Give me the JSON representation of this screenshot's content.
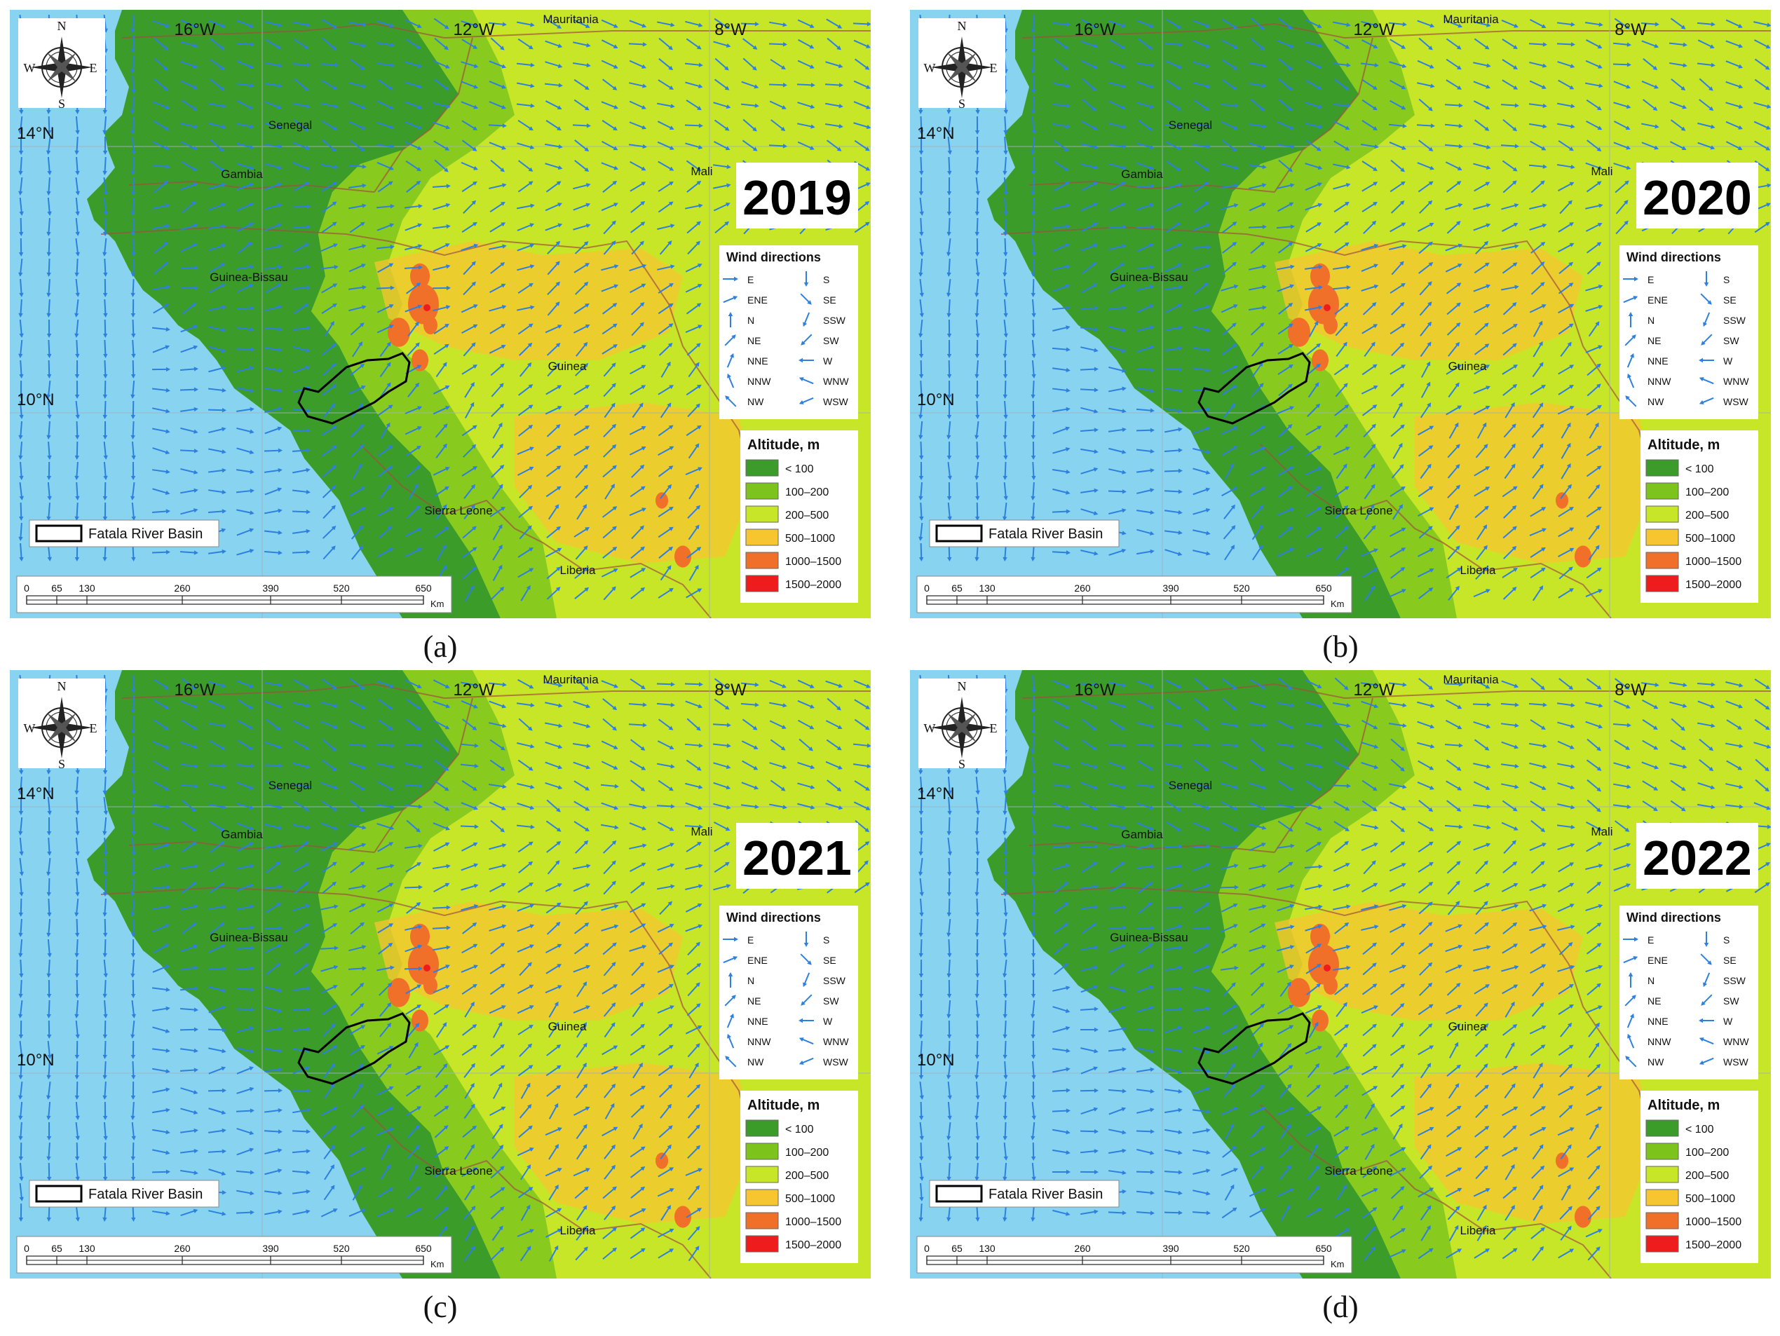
{
  "colors": {
    "ocean": "#88d4f0",
    "alt_lt100": "#3c9c2a",
    "alt_100_200": "#7cc41c",
    "alt_200_500": "#c8e628",
    "alt_500_1000": "#f7c530",
    "alt_1000_1500": "#f0702a",
    "alt_1500_2000": "#ee1c1c",
    "arrow": "#2d7fe0",
    "border": "#a05040"
  },
  "map": {
    "lon_labels": [
      "16°W",
      "12°W",
      "8°W"
    ],
    "lat_labels": [
      "14°N",
      "10°N"
    ],
    "country_labels": [
      "Mauritania",
      "Senegal",
      "Gambia",
      "Mali",
      "Guinea-Bissau",
      "Guinea",
      "Sierra Leone",
      "Liberia"
    ],
    "compass": [
      "N",
      "E",
      "S",
      "W"
    ],
    "basin_label": "Fatala River Basin",
    "scale_ticks": [
      "0",
      "65",
      "130",
      "260",
      "390",
      "520",
      "650"
    ],
    "scale_unit": "Km"
  },
  "legend_wind": {
    "title": "Wind directions",
    "items": [
      {
        "label": "E",
        "icon": "arrow-e-icon"
      },
      {
        "label": "S",
        "icon": "arrow-s-icon"
      },
      {
        "label": "ENE",
        "icon": "arrow-ene-icon"
      },
      {
        "label": "SE",
        "icon": "arrow-se-icon"
      },
      {
        "label": "N",
        "icon": "arrow-n-icon"
      },
      {
        "label": "SSW",
        "icon": "arrow-ssw-icon"
      },
      {
        "label": "NE",
        "icon": "arrow-ne-icon"
      },
      {
        "label": "SW",
        "icon": "arrow-sw-icon"
      },
      {
        "label": "NNE",
        "icon": "arrow-nne-icon"
      },
      {
        "label": "W",
        "icon": "arrow-w-icon"
      },
      {
        "label": "NNW",
        "icon": "arrow-nnw-icon"
      },
      {
        "label": "WNW",
        "icon": "arrow-wnw-icon"
      },
      {
        "label": "NW",
        "icon": "arrow-nw-icon"
      },
      {
        "label": "WSW",
        "icon": "arrow-wsw-icon"
      }
    ]
  },
  "legend_altitude": {
    "title": "Altitude, m",
    "items": [
      "< 100",
      "100–200",
      "200–500",
      "500–1000",
      "1000–1500",
      "1500–2000"
    ]
  },
  "panels": [
    {
      "year": "2019",
      "caption": "(a)"
    },
    {
      "year": "2020",
      "caption": "(b)"
    },
    {
      "year": "2021",
      "caption": "(c)"
    },
    {
      "year": "2022",
      "caption": "(d)"
    }
  ]
}
